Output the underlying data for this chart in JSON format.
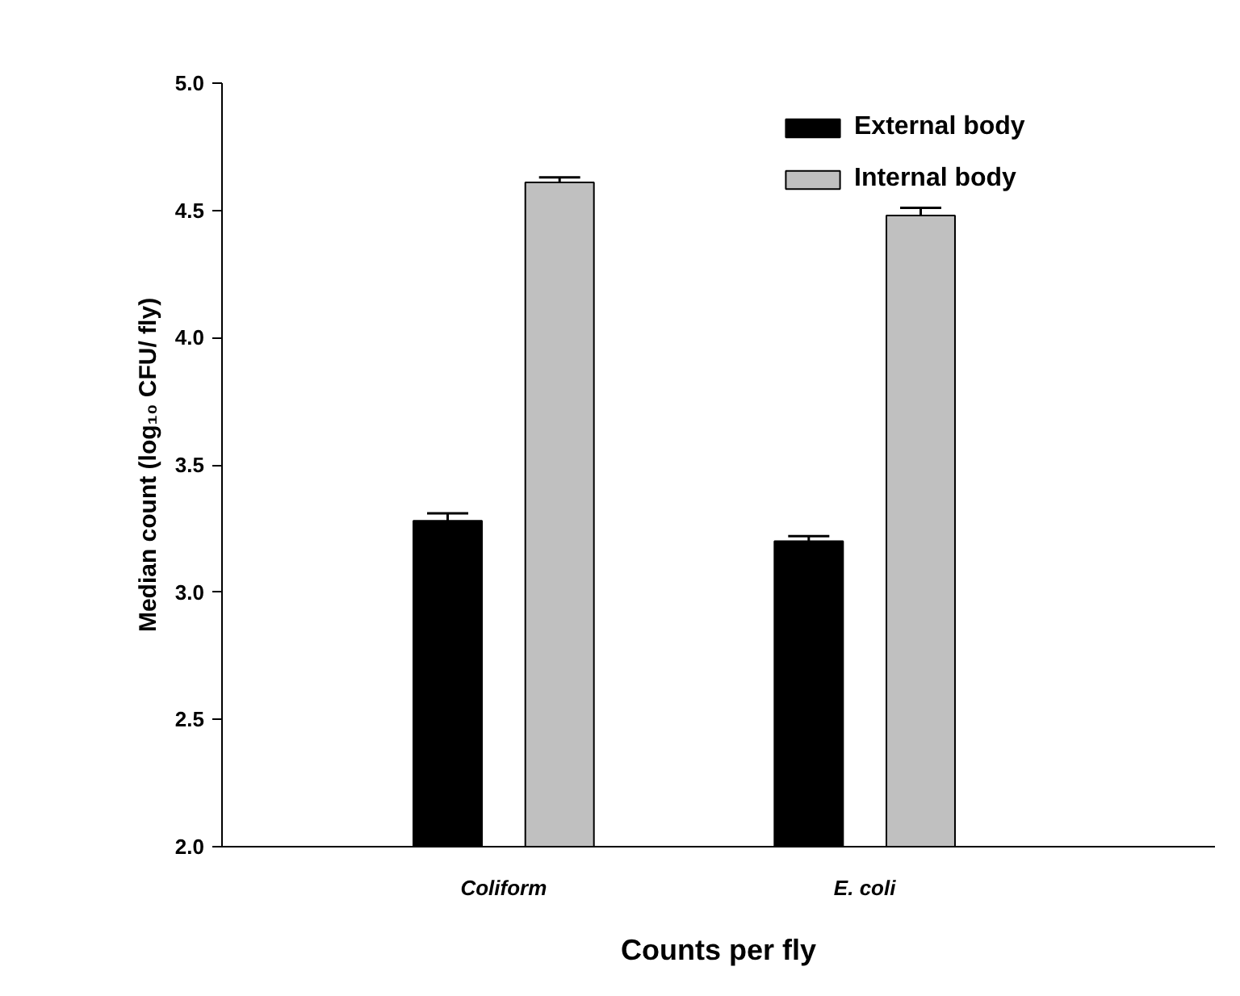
{
  "chart_data": {
    "type": "bar",
    "xlabel": "Counts per fly",
    "ylabel": "Median count (log₁₀ CFU/ fly)",
    "categories": [
      "Coliform",
      "E. coli"
    ],
    "series": [
      {
        "name": "External body",
        "color": "#000000",
        "values": [
          3.28,
          3.2
        ],
        "errors": [
          [
            3.28,
            3.31
          ],
          [
            3.2,
            3.22
          ]
        ]
      },
      {
        "name": "Internal body",
        "color": "#c0c0c0",
        "values": [
          4.61,
          4.48
        ],
        "errors": [
          [
            4.61,
            4.63
          ],
          [
            4.48,
            4.51
          ]
        ]
      }
    ],
    "ylim": [
      2.0,
      5.0
    ],
    "yticks": [
      {
        "value": 2,
        "label": "2.0"
      },
      {
        "value": 2.5,
        "label": "2.5"
      },
      {
        "value": 3,
        "label": "3.0"
      },
      {
        "value": 3.5,
        "label": "3.5"
      },
      {
        "value": 4,
        "label": "4.0"
      },
      {
        "value": 4.5,
        "label": "4.5"
      },
      {
        "value": 5,
        "label": "5.0"
      }
    ],
    "grid": false,
    "legend": "top"
  }
}
